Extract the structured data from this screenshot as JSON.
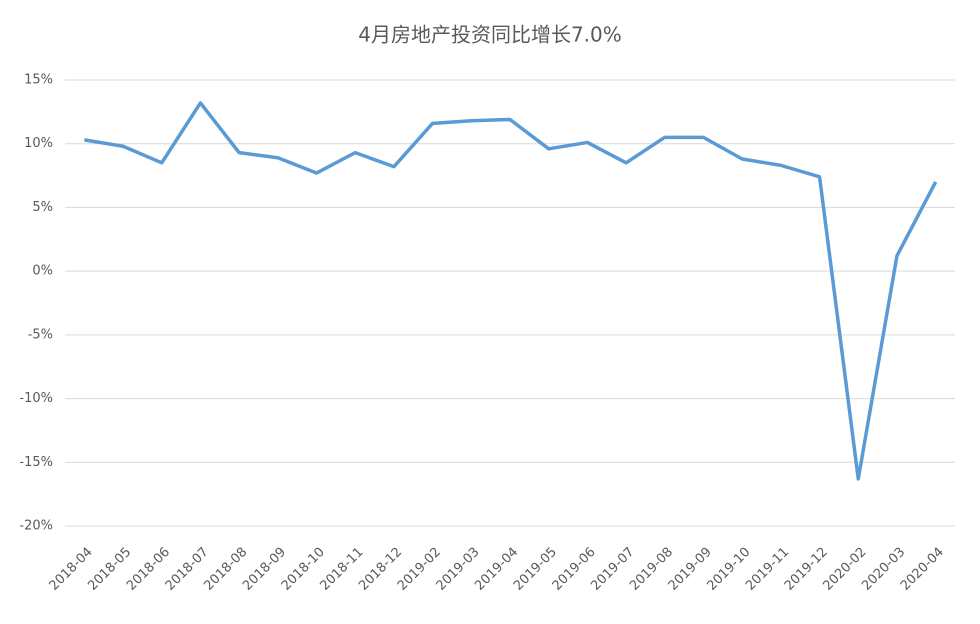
{
  "chart_data": {
    "type": "line",
    "title": "4月房地产投资同比增长7.0%",
    "categories": [
      "2018-04",
      "2018-05",
      "2018-06",
      "2018-07",
      "2018-08",
      "2018-09",
      "2018-10",
      "2018-11",
      "2018-12",
      "2019-02",
      "2019-03",
      "2019-04",
      "2019-05",
      "2019-06",
      "2019-07",
      "2019-08",
      "2019-09",
      "2019-10",
      "2019-11",
      "2019-12",
      "2020-02",
      "2020-03",
      "2020-04"
    ],
    "series": [
      {
        "color": "#5b9bd5",
        "values": [
          10.3,
          9.8,
          8.5,
          13.2,
          9.3,
          8.9,
          7.7,
          9.3,
          8.2,
          11.6,
          11.8,
          11.9,
          9.6,
          10.1,
          8.5,
          10.5,
          10.5,
          8.8,
          8.3,
          7.4,
          -16.3,
          1.2,
          7.0
        ]
      }
    ],
    "ylim": [
      -20,
      15
    ],
    "yticks": [
      {
        "value": -20,
        "label": "-20%"
      },
      {
        "value": -15,
        "label": "-15%"
      },
      {
        "value": -10,
        "label": "-10%"
      },
      {
        "value": -5,
        "label": "-5%"
      },
      {
        "value": 0,
        "label": "0%"
      },
      {
        "value": 5,
        "label": "5%"
      },
      {
        "value": 10,
        "label": "10%"
      },
      {
        "value": 15,
        "label": "15%"
      }
    ],
    "grid": true
  }
}
